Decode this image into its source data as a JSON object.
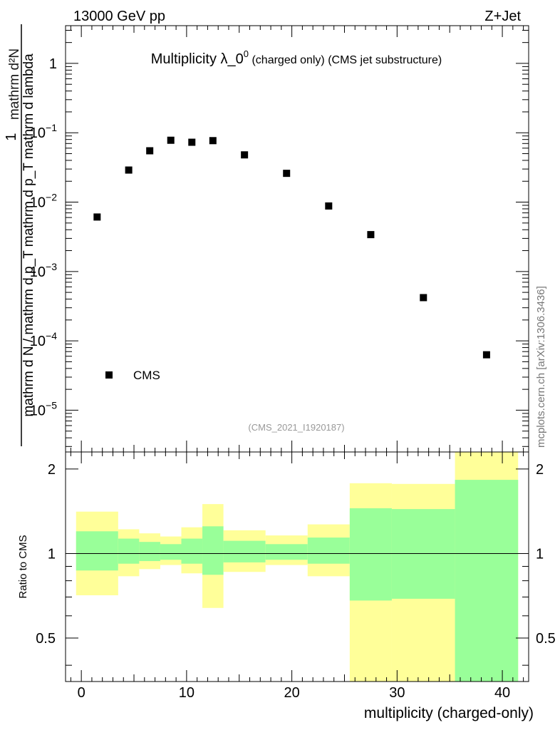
{
  "header": {
    "left": "13000 GeV pp",
    "right": "Z+Jet"
  },
  "side_label": "mcplots.cern.ch [arXiv:1306.3436]",
  "colors": {
    "band_outer": "#ffff99",
    "band_inner": "#99ff99",
    "axis": "#000000",
    "watermark": "#999999"
  },
  "chart_data": [
    {
      "type": "scatter",
      "title_main": "Multiplicity λ_0",
      "title_sup": "0",
      "title_sub": " (charged only) (CMS jet substructure)",
      "ylabel_numerator": "1",
      "ylabel_denominator": "mathrm d N / mathrm d p_T mathrm d p_T mathrm d lambda",
      "ylabel_inner_top": "mathrm d²N",
      "yscale": "log",
      "ylim": [
        2.5e-06,
        3.5
      ],
      "xlim": [
        -1.5,
        42.5
      ],
      "y_ticks": [
        {
          "value": 1,
          "label": "1"
        },
        {
          "value": 0.1,
          "base": "10",
          "exp": "−1"
        },
        {
          "value": 0.01,
          "base": "10",
          "exp": "−2"
        },
        {
          "value": 0.001,
          "base": "10",
          "exp": "−3"
        },
        {
          "value": 0.0001,
          "base": "10",
          "exp": "−4"
        },
        {
          "value": 1e-05,
          "base": "10",
          "exp": "−5"
        }
      ],
      "series": [
        {
          "name": "CMS",
          "x": [
            1.5,
            4.5,
            6.5,
            8.5,
            10.5,
            12.5,
            15.5,
            19.5,
            23.5,
            27.5,
            32.5,
            38.5
          ],
          "y": [
            0.0061,
            0.029,
            0.055,
            0.078,
            0.073,
            0.077,
            0.048,
            0.026,
            0.0088,
            0.0034,
            0.00042,
            6.3e-05
          ]
        }
      ],
      "legend": {
        "label": "CMS",
        "placement": "bottom-left"
      },
      "watermark": "(CMS_2021_I1920187)"
    },
    {
      "type": "area",
      "ylabel": "Ratio to CMS",
      "xlabel": "multiplicity (charged-only)",
      "ylim": [
        0.35,
        2.3
      ],
      "xlim": [
        -1.5,
        42.5
      ],
      "x_ticks": [
        0,
        10,
        20,
        30,
        40
      ],
      "y_ticks": [
        {
          "value": 2,
          "label": "2"
        },
        {
          "value": 1,
          "label": "1"
        },
        {
          "value": 0.5,
          "label": "0.5"
        }
      ],
      "reference_line": 1,
      "bins": [
        {
          "x0": -0.5,
          "x1": 3.5,
          "outer": [
            0.71,
            1.41
          ],
          "inner": [
            0.87,
            1.2
          ]
        },
        {
          "x0": 3.5,
          "x1": 5.5,
          "outer": [
            0.83,
            1.22
          ],
          "inner": [
            0.92,
            1.13
          ]
        },
        {
          "x0": 5.5,
          "x1": 7.5,
          "outer": [
            0.88,
            1.18
          ],
          "inner": [
            0.94,
            1.1
          ]
        },
        {
          "x0": 7.5,
          "x1": 9.5,
          "outer": [
            0.91,
            1.15
          ],
          "inner": [
            0.95,
            1.08
          ]
        },
        {
          "x0": 9.5,
          "x1": 11.5,
          "outer": [
            0.85,
            1.24
          ],
          "inner": [
            0.92,
            1.13
          ]
        },
        {
          "x0": 11.5,
          "x1": 13.5,
          "outer": [
            0.64,
            1.5
          ],
          "inner": [
            0.84,
            1.25
          ]
        },
        {
          "x0": 13.5,
          "x1": 17.5,
          "outer": [
            0.86,
            1.21
          ],
          "inner": [
            0.93,
            1.11
          ]
        },
        {
          "x0": 17.5,
          "x1": 21.5,
          "outer": [
            0.91,
            1.16
          ],
          "inner": [
            0.95,
            1.08
          ]
        },
        {
          "x0": 21.5,
          "x1": 25.5,
          "outer": [
            0.83,
            1.27
          ],
          "inner": [
            0.92,
            1.14
          ]
        },
        {
          "x0": 25.5,
          "x1": 29.5,
          "outer": [
            0.34,
            1.78
          ],
          "inner": [
            0.68,
            1.45
          ]
        },
        {
          "x0": 29.5,
          "x1": 35.5,
          "outer": [
            0.34,
            1.77
          ],
          "inner": [
            0.69,
            1.44
          ]
        },
        {
          "x0": 35.5,
          "x1": 41.5,
          "outer": [
            0.34,
            2.3
          ],
          "inner": [
            0.34,
            1.83
          ]
        }
      ]
    }
  ]
}
